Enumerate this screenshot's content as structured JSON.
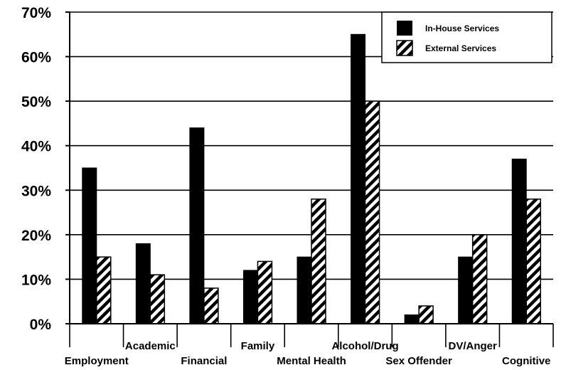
{
  "chart_data": {
    "type": "bar",
    "title": "",
    "xlabel": "",
    "ylabel": "",
    "ylim": [
      0,
      70
    ],
    "y_ticks": [
      0,
      10,
      20,
      30,
      40,
      50,
      60,
      70
    ],
    "y_tick_labels": [
      "0%",
      "10%",
      "20%",
      "30%",
      "40%",
      "50%",
      "60%",
      "70%"
    ],
    "categories": [
      "Employment",
      "Academic",
      "Financial",
      "Family",
      "Mental Health",
      "Alcohol/Drug",
      "Sex Offender",
      "DV/Anger",
      "Cognitive"
    ],
    "category_label_rows": [
      "lower",
      "upper",
      "lower",
      "upper",
      "lower",
      "upper",
      "lower",
      "upper",
      "lower"
    ],
    "series": [
      {
        "name": "In-House Services",
        "values": [
          35,
          18,
          44,
          12,
          15,
          65,
          2,
          15,
          37
        ],
        "fill": "solid-black"
      },
      {
        "name": "External Services",
        "values": [
          15,
          11,
          8,
          14,
          28,
          50,
          4,
          20,
          28
        ],
        "fill": "diagonal-hatch"
      }
    ],
    "grid": true,
    "legend_position": "top-right"
  },
  "colors": {
    "bar_solid": "#000000",
    "hatch_line": "#000000",
    "hatch_background": "#ffffff",
    "gridline": "#000000",
    "background": "#ffffff"
  }
}
